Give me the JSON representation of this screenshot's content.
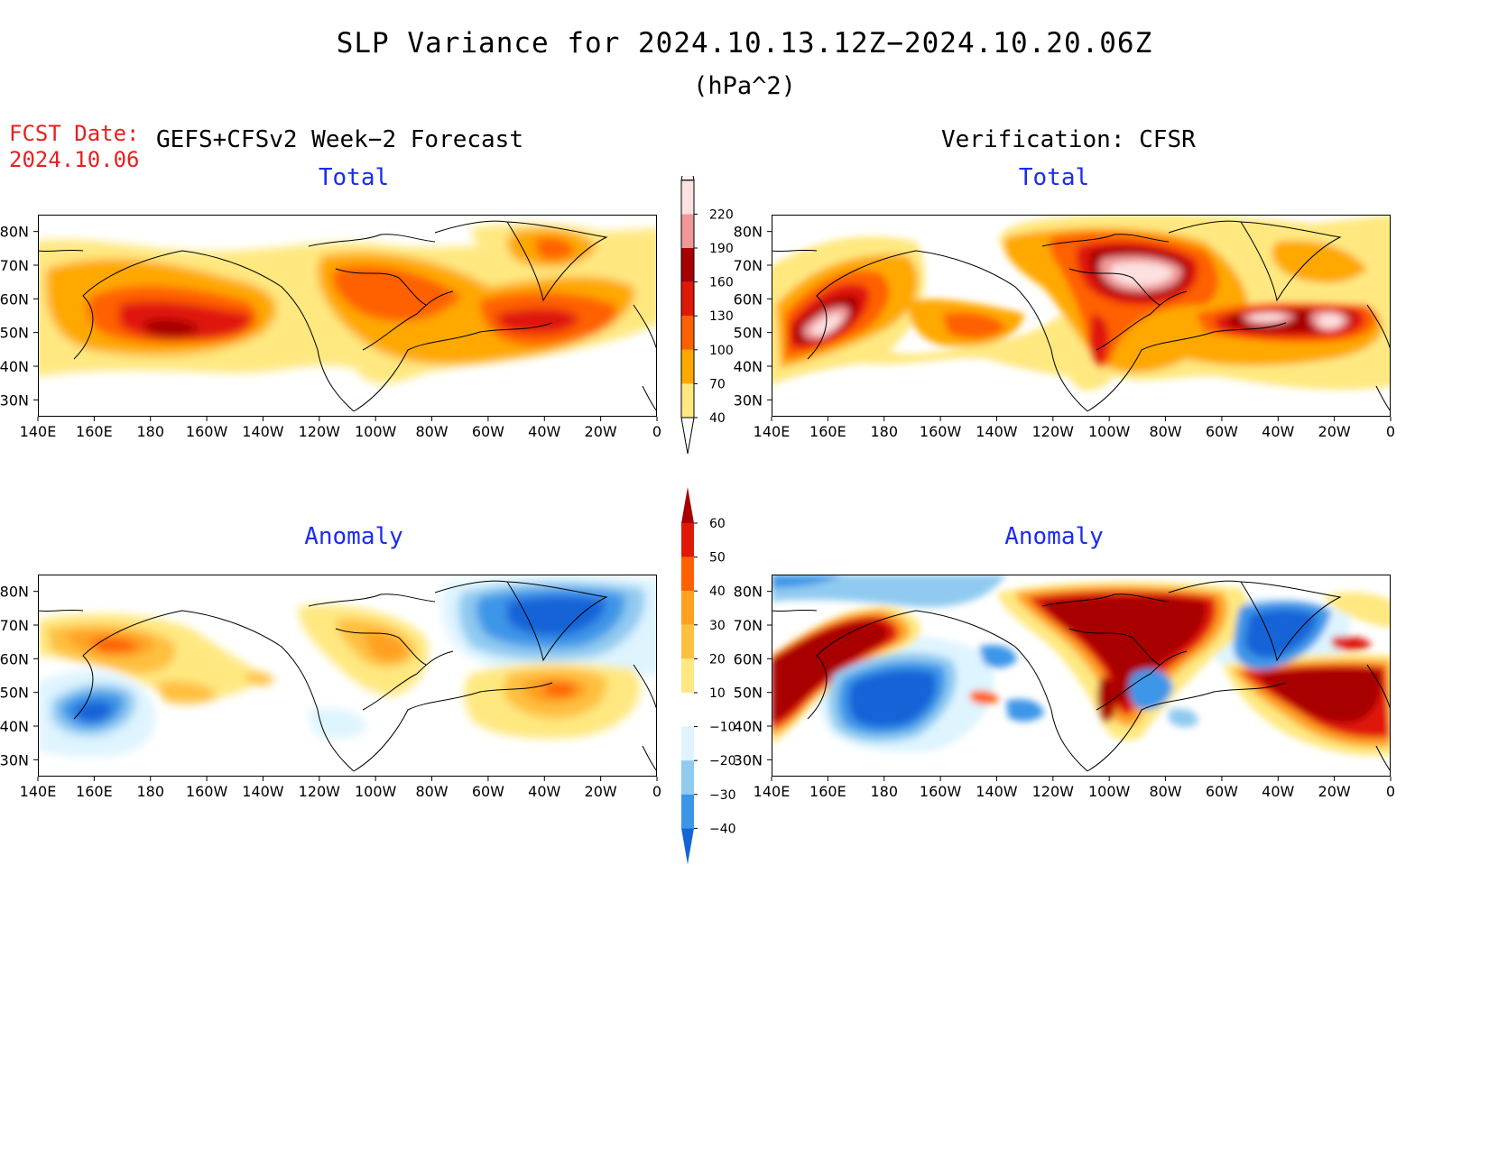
{
  "figure": {
    "title": "SLP Variance for 2024.10.13.12Z−2024.10.20.06Z",
    "units": "(hPa^2)",
    "fcst_label": "FCST Date:",
    "fcst_date": "2024.10.06",
    "forecast_heading": "GEFS+CFSv2 Week−2 Forecast",
    "verification_heading": "Verification: CFSR"
  },
  "panels": {
    "total_label": "Total",
    "anomaly_label": "Anomaly",
    "lat_labels": [
      "80N",
      "70N",
      "60N",
      "50N",
      "40N",
      "30N"
    ],
    "lon_labels": [
      "140E",
      "160E",
      "180",
      "160W",
      "140W",
      "120W",
      "100W",
      "80W",
      "60W",
      "40W",
      "20W",
      "0"
    ]
  },
  "total_colorbar": {
    "levels": [
      "40",
      "70",
      "100",
      "130",
      "160",
      "190",
      "220"
    ],
    "colors": [
      "#ffe880",
      "#ffa800",
      "#ff6000",
      "#e01808",
      "#a80000",
      "#f09898",
      "#fde0e0"
    ]
  },
  "anomaly_colorbar": {
    "levels": [
      "60",
      "50",
      "40",
      "30",
      "20",
      "10",
      "−10",
      "−20",
      "−30",
      "−40"
    ],
    "warm_colors": [
      "#ffe880",
      "#ffc040",
      "#ffa020",
      "#ff6000",
      "#e01808",
      "#a80000"
    ],
    "cool_colors": [
      "#def4ff",
      "#90caf0",
      "#3c96e8",
      "#1464d8"
    ]
  },
  "chart_data": [
    {
      "type": "heatmap",
      "panel": "GEFS+CFSv2 Week-2 Forecast - Total",
      "units": "hPa^2",
      "x_range": [
        "140E",
        "0"
      ],
      "y_range": [
        "25N",
        "85N"
      ],
      "features": [
        {
          "center_lon": "170W",
          "center_lat": 50,
          "peak": "160-190"
        },
        {
          "center_lon": "45W",
          "center_lat": 52,
          "peak": "130-160"
        },
        {
          "center_lon": "100W",
          "center_lat": 60,
          "peak": "100-130"
        },
        {
          "center_lon": "40W",
          "center_lat": 74,
          "peak": "100-130"
        }
      ]
    },
    {
      "type": "heatmap",
      "panel": "Verification: CFSR - Total",
      "units": "hPa^2",
      "x_range": [
        "140E",
        "0"
      ],
      "y_range": [
        "25N",
        "85N"
      ],
      "features": [
        {
          "center_lon": "160E",
          "center_lat": 50,
          "peak": ">220"
        },
        {
          "center_lon": "80W",
          "center_lat": 69,
          "peak": ">220"
        },
        {
          "center_lon": "42W",
          "center_lat": 53,
          "peak": ">220"
        },
        {
          "center_lon": "23W",
          "center_lat": 50,
          "peak": ">220"
        }
      ]
    },
    {
      "type": "heatmap",
      "panel": "GEFS+CFSv2 Week-2 Forecast - Anomaly",
      "units": "hPa^2",
      "x_range": [
        "140E",
        "0"
      ],
      "y_range": [
        "25N",
        "85N"
      ],
      "features": [
        {
          "center_lon": "160E",
          "center_lat": 46,
          "peak": "-30 to -40"
        },
        {
          "center_lon": "40W",
          "center_lat": 75,
          "peak": "-30 to -40"
        },
        {
          "center_lon": "35W",
          "center_lat": 51,
          "peak": "30-40"
        },
        {
          "center_lon": "170E",
          "center_lat": 65,
          "peak": "30-40"
        },
        {
          "center_lon": "100W",
          "center_lat": 65,
          "peak": "30-40"
        }
      ]
    },
    {
      "type": "heatmap",
      "panel": "Verification: CFSR - Anomaly",
      "units": "hPa^2",
      "x_range": [
        "140E",
        "0"
      ],
      "y_range": [
        "25N",
        "85N"
      ],
      "features": [
        {
          "center_lon": "85W",
          "center_lat": 72,
          "peak": ">60"
        },
        {
          "center_lon": "170E",
          "center_lat": 45,
          "peak": "<-40"
        },
        {
          "center_lon": "25W",
          "center_lat": 50,
          "peak": ">60"
        },
        {
          "center_lon": "150E",
          "center_lat": 48,
          "peak": ">60"
        },
        {
          "center_lon": "40W",
          "center_lat": 68,
          "peak": "<-40"
        }
      ]
    }
  ]
}
